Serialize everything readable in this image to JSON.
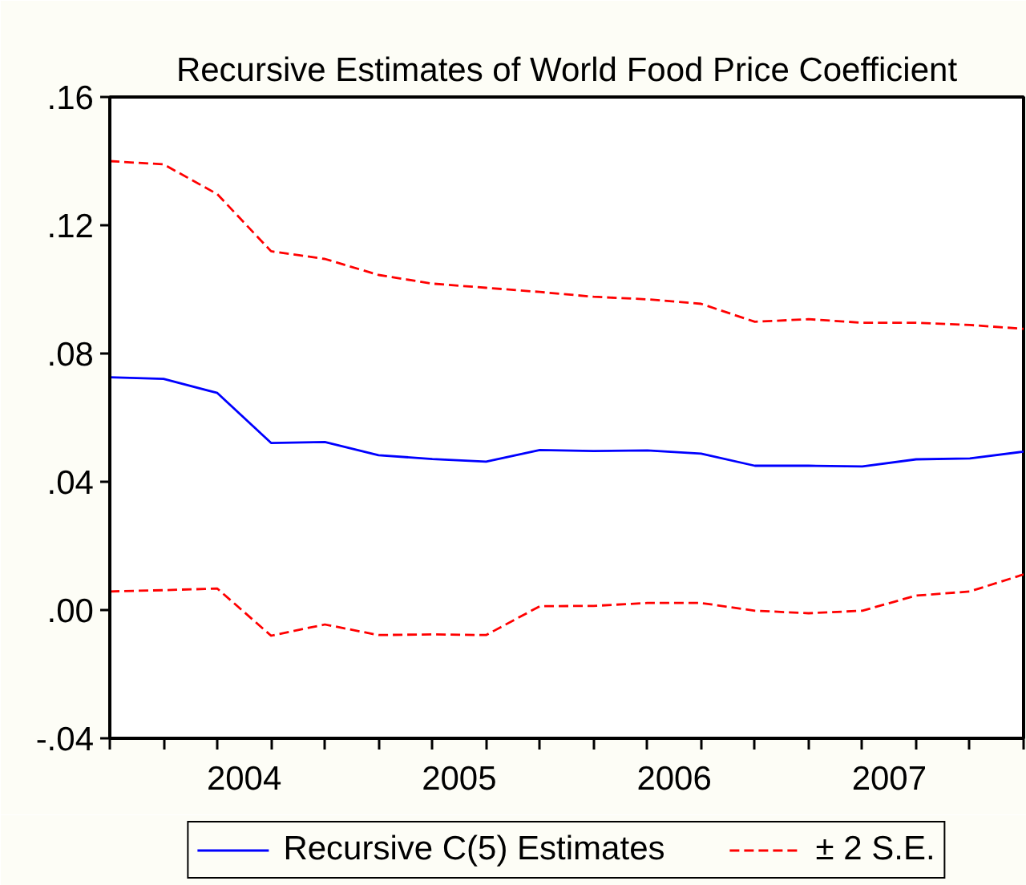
{
  "chart_data": {
    "type": "line",
    "title": "Recursive Estimates of World Food Price Coefficient",
    "x": [
      2003.75,
      2004.0,
      2004.25,
      2004.5,
      2004.75,
      2005.0,
      2005.25,
      2005.5,
      2005.75,
      2006.0,
      2006.25,
      2006.5,
      2006.75,
      2007.0,
      2007.25,
      2007.5,
      2007.75,
      2008.0
    ],
    "series": [
      {
        "name": "Recursive C(5) Estimates",
        "color": "#0000ff",
        "line_style": "solid",
        "values": [
          0.0726,
          0.0721,
          0.0677,
          0.0521,
          0.0524,
          0.0483,
          0.0471,
          0.0463,
          0.0499,
          0.0496,
          0.0498,
          0.0488,
          0.045,
          0.045,
          0.0448,
          0.047,
          0.0473,
          0.0494
        ]
      },
      {
        "name": "± 2 S.E.",
        "color": "#ff0000",
        "line_style": "dashed",
        "values": [
          0.14,
          0.139,
          0.1297,
          0.1119,
          0.1095,
          0.1045,
          0.1018,
          0.1005,
          0.0992,
          0.0977,
          0.0969,
          0.0955,
          0.0899,
          0.0907,
          0.0896,
          0.0896,
          0.0889,
          0.0877
        ]
      },
      {
        "color": "#ff0000",
        "line_style": "dashed",
        "values": [
          0.0058,
          0.0062,
          0.0067,
          -0.008,
          -0.0045,
          -0.0078,
          -0.0076,
          -0.0078,
          0.0012,
          0.0013,
          0.0022,
          0.0022,
          -0.0002,
          -0.001,
          -0.0002,
          0.0045,
          0.0058,
          0.0111
        ]
      }
    ],
    "xlim": [
      2003.75,
      2008.0
    ],
    "xticks": [
      {
        "value": 2003.75,
        "label": null
      },
      {
        "value": 2004.0,
        "label": null
      },
      {
        "value": 2004.25,
        "label": null
      },
      {
        "value": 2004.5,
        "label": null
      },
      {
        "value": 2004.75,
        "label": null
      },
      {
        "value": 2005.0,
        "label": null
      },
      {
        "value": 2005.25,
        "label": null
      },
      {
        "value": 2005.5,
        "label": null
      },
      {
        "value": 2005.75,
        "label": null
      },
      {
        "value": 2006.0,
        "label": null
      },
      {
        "value": 2006.25,
        "label": null
      },
      {
        "value": 2006.5,
        "label": null
      },
      {
        "value": 2006.75,
        "label": null
      },
      {
        "value": 2007.0,
        "label": null
      },
      {
        "value": 2007.25,
        "label": null
      },
      {
        "value": 2007.5,
        "label": null
      },
      {
        "value": 2007.75,
        "label": null
      },
      {
        "value": 2008.0,
        "label": null
      },
      {
        "value": 2004.375,
        "label": "2004"
      },
      {
        "value": 2005.375,
        "label": "2005"
      },
      {
        "value": 2006.375,
        "label": "2006"
      },
      {
        "value": 2007.375,
        "label": "2007"
      }
    ],
    "ylim": [
      -0.04,
      0.16
    ],
    "yticks": [
      {
        "value": -0.04,
        "label": "-.04"
      },
      {
        "value": 0.0,
        "label": ".00"
      },
      {
        "value": 0.04,
        "label": ".04"
      },
      {
        "value": 0.08,
        "label": ".08"
      },
      {
        "value": 0.12,
        "label": ".12"
      },
      {
        "value": 0.16,
        "label": ".16"
      }
    ],
    "legend": "bottom"
  }
}
